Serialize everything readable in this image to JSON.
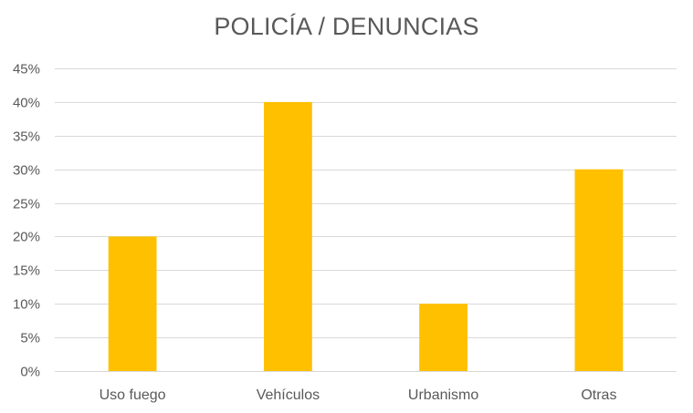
{
  "chart_data": {
    "type": "bar",
    "title": "POLICÍA / DENUNCIAS",
    "xlabel": "",
    "ylabel": "",
    "categories": [
      "Uso fuego",
      "Vehículos",
      "Urbanismo",
      "Otras"
    ],
    "values": [
      20,
      40,
      10,
      30
    ],
    "value_unit": "%",
    "ylim": [
      0,
      45
    ],
    "y_ticks": [
      "0%",
      "5%",
      "10%",
      "15%",
      "20%",
      "25%",
      "30%",
      "35%",
      "40%",
      "45%"
    ],
    "y_tick_values": [
      0,
      5,
      10,
      15,
      20,
      25,
      30,
      35,
      40,
      45
    ],
    "grid": true,
    "legend": "none",
    "bar_color": "#FFC000",
    "grid_color": "#D9D9D9",
    "text_color": "#595959"
  }
}
